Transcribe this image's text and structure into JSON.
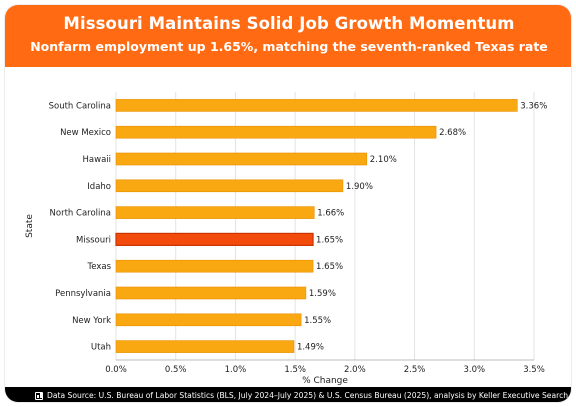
{
  "header": {
    "title": "Missouri Maintains Solid Job Growth Momentum",
    "subtitle": "Nonfarm employment up 1.65%, matching the seventh-ranked Texas rate"
  },
  "colors": {
    "header_bg": "#ff6a13",
    "bar": "#f9a811",
    "bar_stroke": "#e88f00",
    "highlight": "#f24b0c",
    "highlight_stroke": "#c93400",
    "grid": "#e3e3e3",
    "footer_bg": "#000000"
  },
  "chart_data": {
    "type": "bar",
    "orientation": "horizontal",
    "categories": [
      "South Carolina",
      "New Mexico",
      "Hawaii",
      "Idaho",
      "North Carolina",
      "Missouri",
      "Texas",
      "Pennsylvania",
      "New York",
      "Utah"
    ],
    "values": [
      3.36,
      2.68,
      2.1,
      1.9,
      1.66,
      1.65,
      1.65,
      1.59,
      1.55,
      1.49
    ],
    "value_labels": [
      "3.36%",
      "2.68%",
      "2.10%",
      "1.90%",
      "1.66%",
      "1.65%",
      "1.65%",
      "1.59%",
      "1.55%",
      "1.49%"
    ],
    "highlight": "Missouri",
    "xlabel": "% Change",
    "ylabel": "State",
    "xlim": [
      0,
      3.5
    ],
    "xticks": [
      0,
      0.5,
      1.0,
      1.5,
      2.0,
      2.5,
      3.0,
      3.5
    ],
    "xtick_labels": [
      "0.0%",
      "0.5%",
      "1.0%",
      "1.5%",
      "2.0%",
      "2.5%",
      "3.0%",
      "3.5%"
    ],
    "grid": "vertical"
  },
  "footer": {
    "icon": "bar-chart-icon",
    "source": "Data Source: U.S. Bureau of Labor Statistics (BLS, July 2024–July 2025) & U.S. Census Bureau (2025), analysis by Keller Executive Search"
  }
}
